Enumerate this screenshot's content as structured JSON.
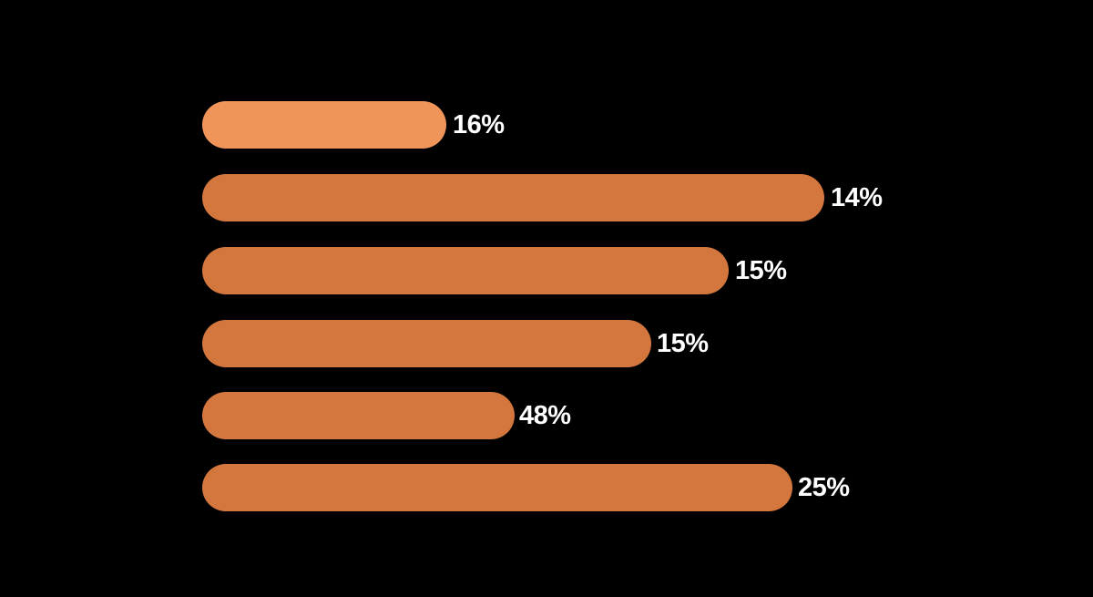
{
  "items": [
    {
      "label": "16%"
    },
    {
      "label": "14%"
    },
    {
      "label": "15%"
    },
    {
      "label": "15%"
    },
    {
      "label": "48%"
    },
    {
      "label": "25%"
    }
  ]
}
